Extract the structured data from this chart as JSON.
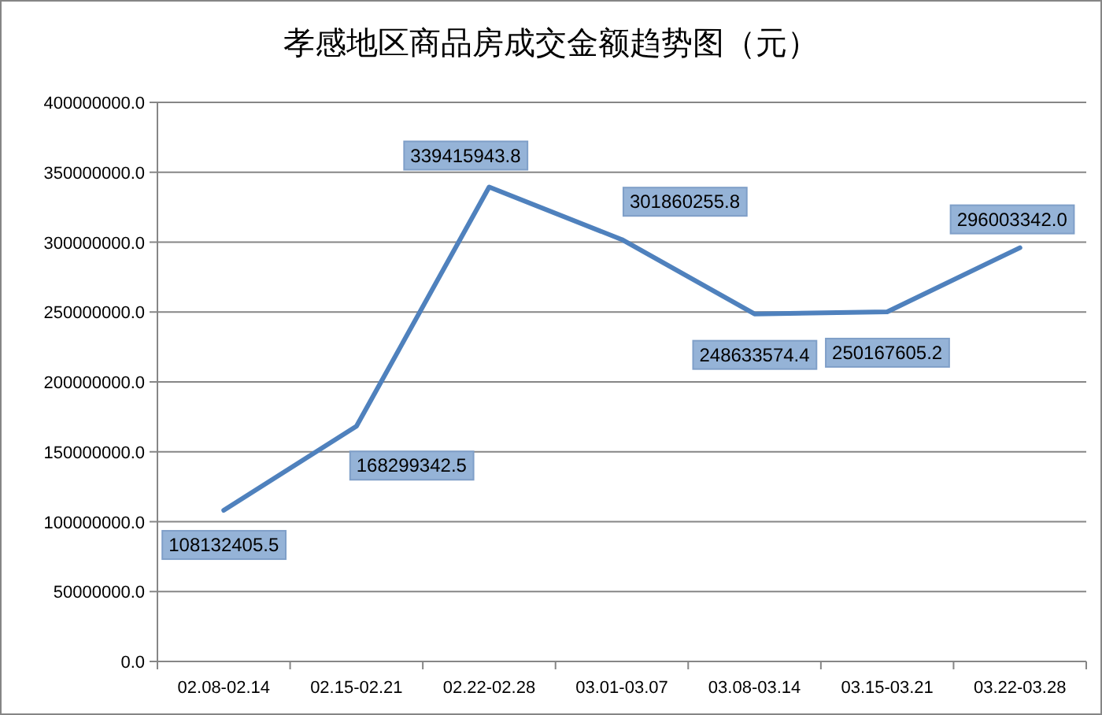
{
  "chart_data": {
    "type": "line",
    "title": "孝感地区商品房成交金额趋势图（元）",
    "categories": [
      "02.08-02.14",
      "02.15-02.21",
      "02.22-02.28",
      "03.01-03.07",
      "03.08-03.14",
      "03.15-03.21",
      "03.22-03.28"
    ],
    "series": [
      {
        "color": "#4f81bd",
        "values": [
          108132405.5,
          168299342.5,
          339415943.8,
          301860255.8,
          248633574.4,
          250167605.2,
          296003342.0
        ],
        "value_labels": [
          "108132405.5",
          "168299342.5",
          "339415943.8",
          "301860255.8",
          "248633574.4",
          "250167605.2",
          "296003342.0"
        ]
      }
    ],
    "ylim": [
      0,
      400000000
    ],
    "yticks": [
      {
        "value": 0,
        "label": "0.0"
      },
      {
        "value": 50000000,
        "label": "50000000.0"
      },
      {
        "value": 100000000,
        "label": "100000000.0"
      },
      {
        "value": 150000000,
        "label": "150000000.0"
      },
      {
        "value": 200000000,
        "label": "200000000.0"
      },
      {
        "value": 250000000,
        "label": "250000000.0"
      },
      {
        "value": 300000000,
        "label": "300000000.0"
      },
      {
        "value": 350000000,
        "label": "350000000.0"
      },
      {
        "value": 400000000,
        "label": "400000000.0"
      }
    ],
    "grid": "y",
    "marker": "none",
    "line_style": "solid"
  }
}
